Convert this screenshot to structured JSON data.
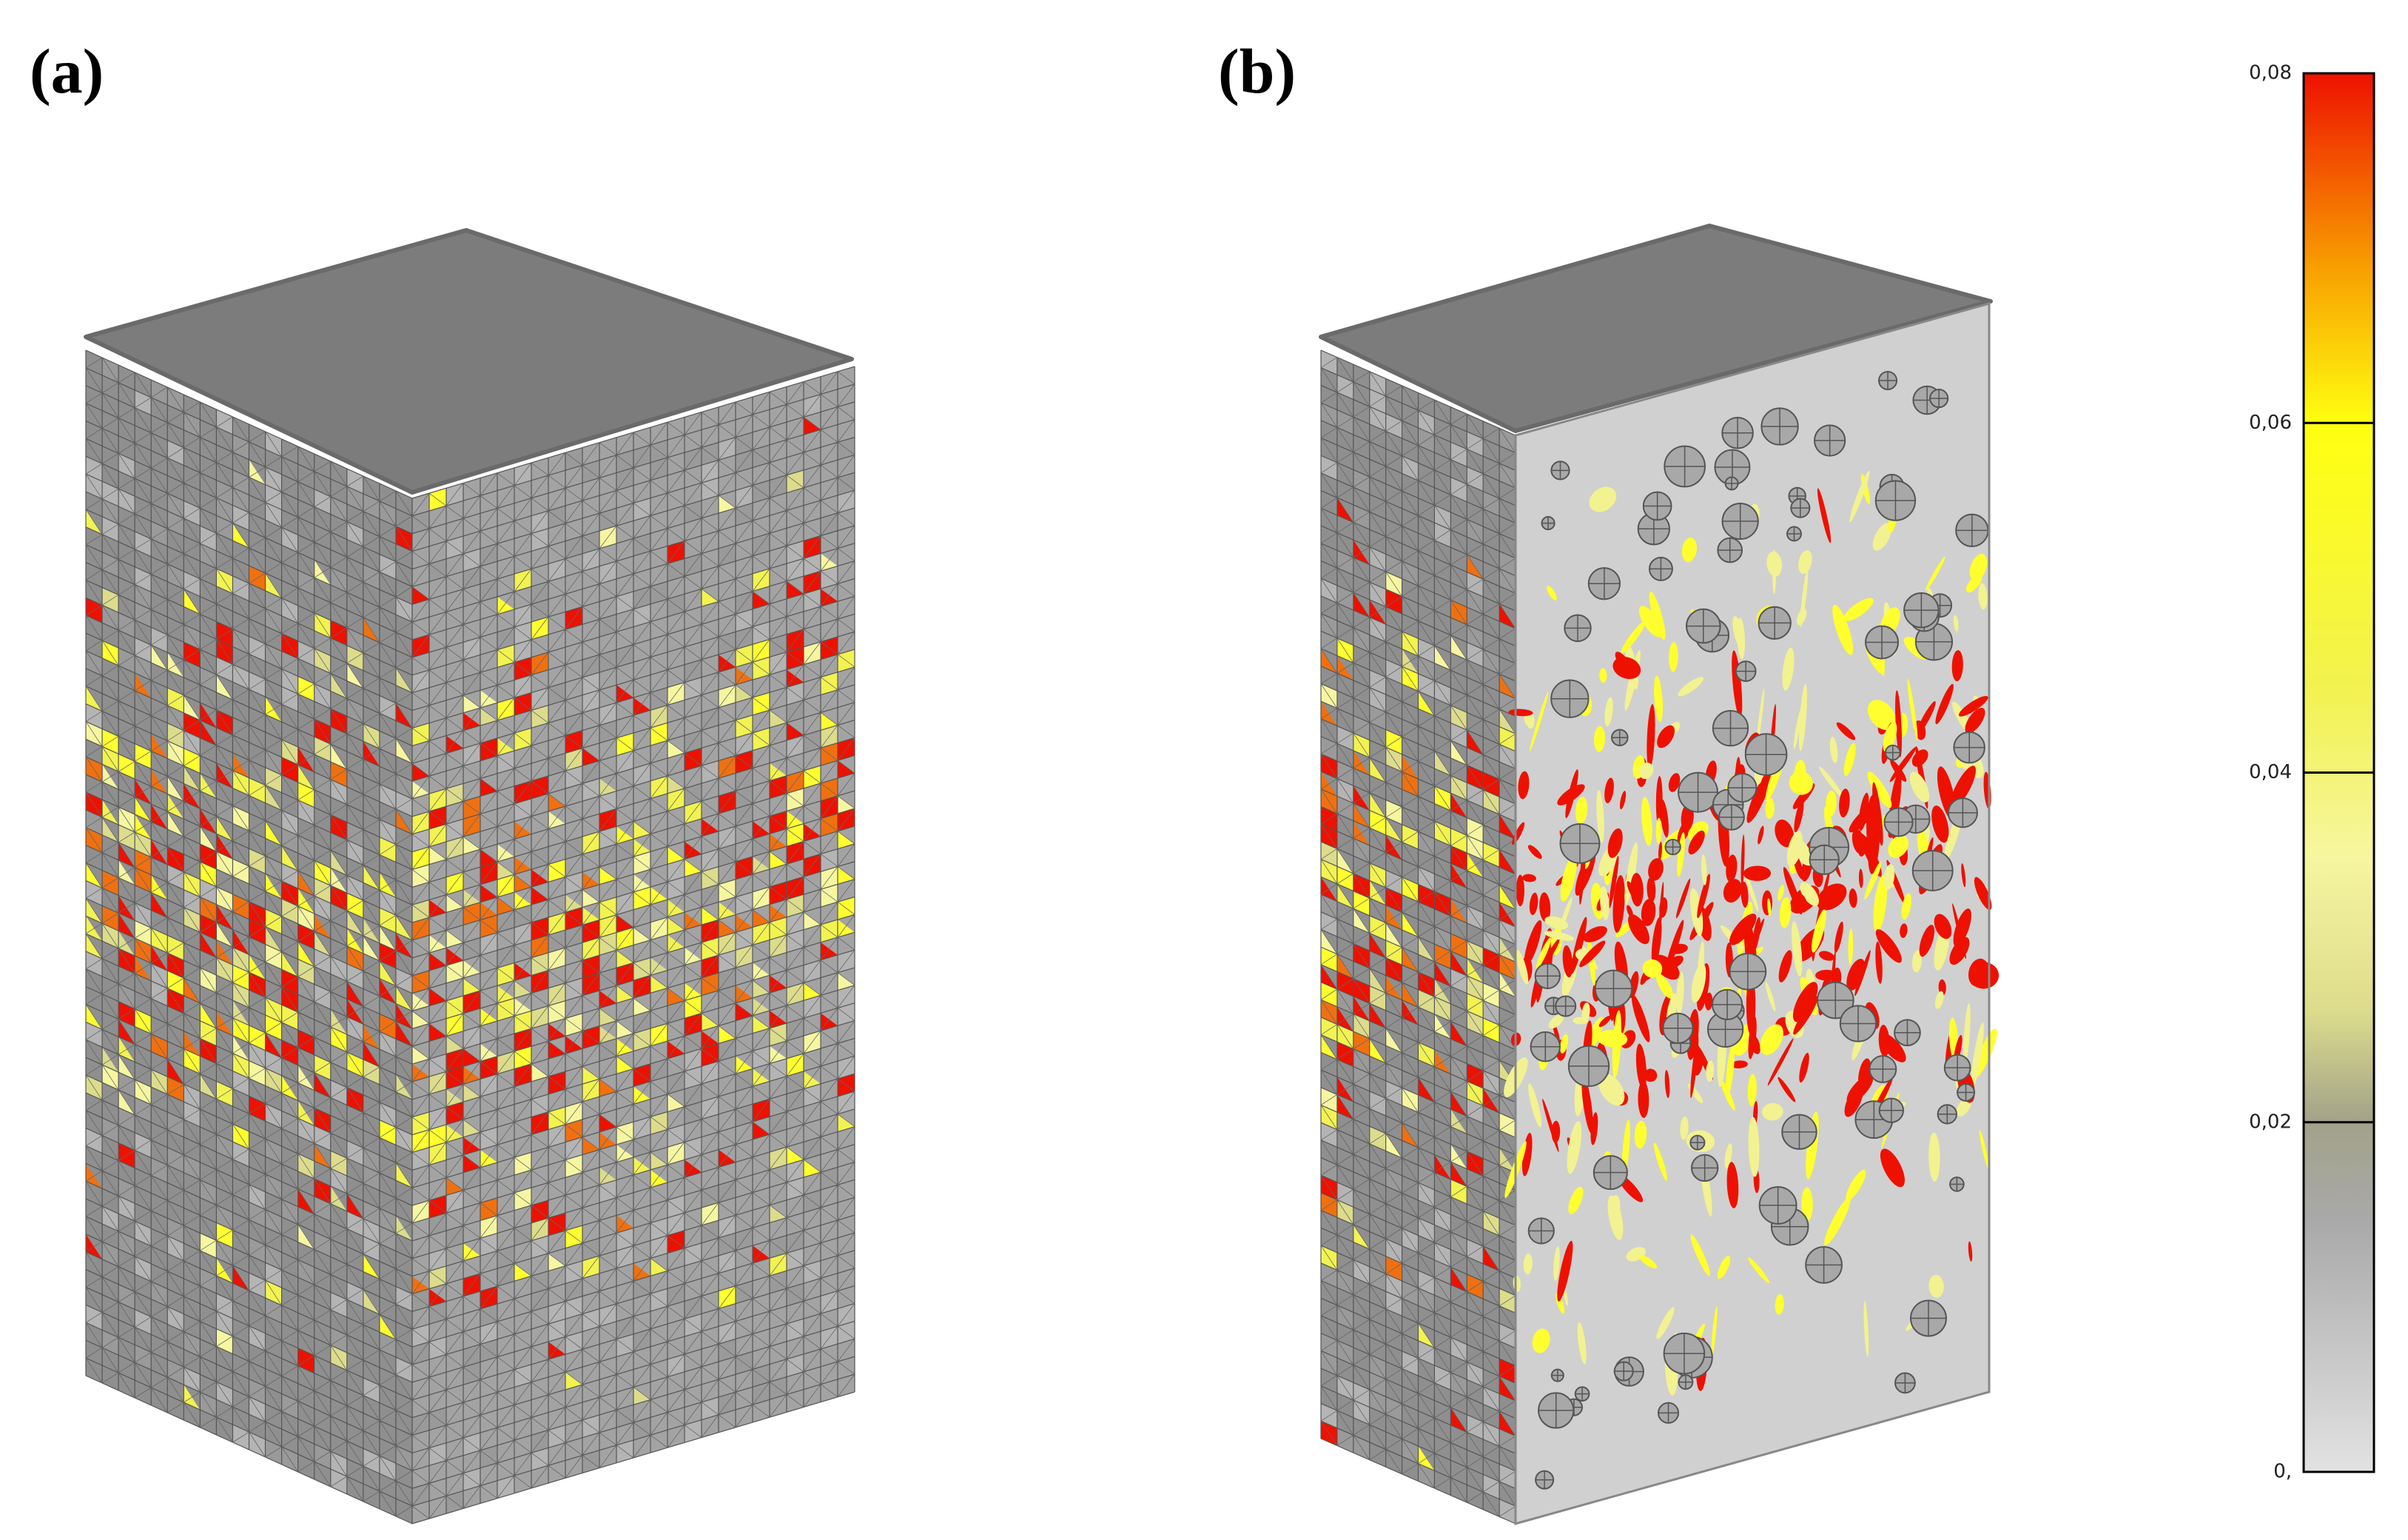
{
  "panels": [
    {
      "label": "(a)"
    },
    {
      "label": "(b)"
    }
  ],
  "colorbar": {
    "ticks": [
      {
        "value": 0.08,
        "label": "0,08"
      },
      {
        "value": 0.06,
        "label": "0,06"
      },
      {
        "value": 0.04,
        "label": "0,04"
      },
      {
        "value": 0.02,
        "label": "0,02"
      },
      {
        "value": 0,
        "label": "0,"
      }
    ],
    "range": [
      0,
      0.08
    ]
  }
}
